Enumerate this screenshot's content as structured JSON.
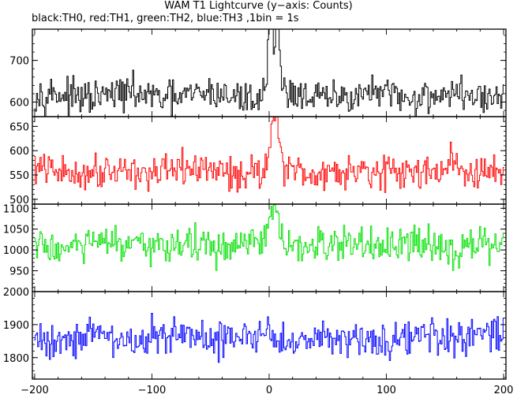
{
  "title": "WAM T1 Lightcurve (y−axis: Counts)",
  "subtitle": "black:TH0, red:TH1, green:TH2, blue:TH3 ,1bin = 1s",
  "colors": {
    "TH0": "#000000",
    "TH1": "#ff0000",
    "TH2": "#00e000",
    "TH3": "#0000ff"
  },
  "chart_data": {
    "type": "line",
    "x_ticks": [
      -200,
      -100,
      0,
      100,
      200
    ],
    "xlim": [
      -202,
      202
    ],
    "bin_seconds": 1,
    "panels": [
      {
        "series": "TH0",
        "color": "#000000",
        "ylim": [
          565,
          775
        ],
        "y_ticks": [
          600,
          700
        ],
        "baseline": 615,
        "noise": 28,
        "features": [
          {
            "x": 1,
            "peak": 780,
            "width": 2
          },
          {
            "x": 7,
            "peak": 775,
            "width": 2
          },
          {
            "x": 4,
            "peak": 700,
            "width": 6
          }
        ]
      },
      {
        "series": "TH1",
        "color": "#ff0000",
        "ylim": [
          490,
          670
        ],
        "y_ticks": [
          500,
          550,
          600,
          650
        ],
        "baseline": 558,
        "noise": 24,
        "features": [
          {
            "x": 5,
            "peak": 670,
            "width": 5
          },
          {
            "x": 155,
            "peak": 600,
            "width": 1
          }
        ]
      },
      {
        "series": "TH2",
        "color": "#00e000",
        "ylim": [
          900,
          1110
        ],
        "y_ticks": [
          950,
          1000,
          1050,
          1100
        ],
        "baseline": 1010,
        "noise": 30,
        "features": [
          {
            "x": 4,
            "peak": 1080,
            "width": 6
          }
        ]
      },
      {
        "series": "TH3",
        "color": "#0000ff",
        "ylim": [
          1735,
          2000
        ],
        "y_ticks": [
          1800,
          1900,
          2000
        ],
        "baseline": 1860,
        "noise": 40,
        "features": []
      }
    ]
  }
}
